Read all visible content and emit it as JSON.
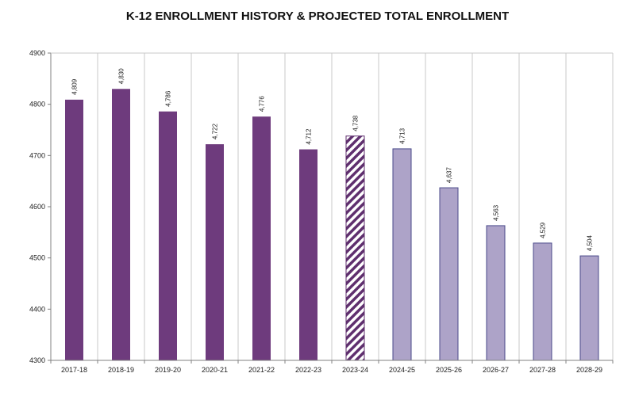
{
  "chart_data": {
    "type": "bar",
    "title": "K-12  ENROLLMENT HISTORY & PROJECTED TOTAL ENROLLMENT",
    "xlabel": "",
    "ylabel": "",
    "ylim": [
      4300,
      4900
    ],
    "yticks": [
      4300,
      4400,
      4500,
      4600,
      4700,
      4800,
      4900
    ],
    "grid": "vertical",
    "categories": [
      "2017-18",
      "2018-19",
      "2019-20",
      "2020-21",
      "2021-22",
      "2022-23",
      "2023-24",
      "2024-25",
      "2025-26",
      "2026-27",
      "2027-28",
      "2028-29"
    ],
    "values": [
      4809,
      4830,
      4786,
      4722,
      4776,
      4712,
      4738,
      4713,
      4637,
      4563,
      4529,
      4504
    ],
    "data_labels": [
      "4,809",
      "4,830",
      "4,786",
      "4,722",
      "4,776",
      "4,712",
      "4,738",
      "4,713",
      "4,637",
      "4,563",
      "4,529",
      "4,504"
    ],
    "bar_styles": [
      "historical",
      "historical",
      "historical",
      "historical",
      "historical",
      "historical",
      "current-hatched",
      "projected",
      "projected",
      "projected",
      "projected",
      "projected"
    ],
    "colors": {
      "historical": "#6e3b7d",
      "current": "#5f2f6e",
      "projected": "#ada3c8",
      "projected_border": "#4a4a8a",
      "grid": "#c8c8c8",
      "axis": "#808080"
    }
  }
}
